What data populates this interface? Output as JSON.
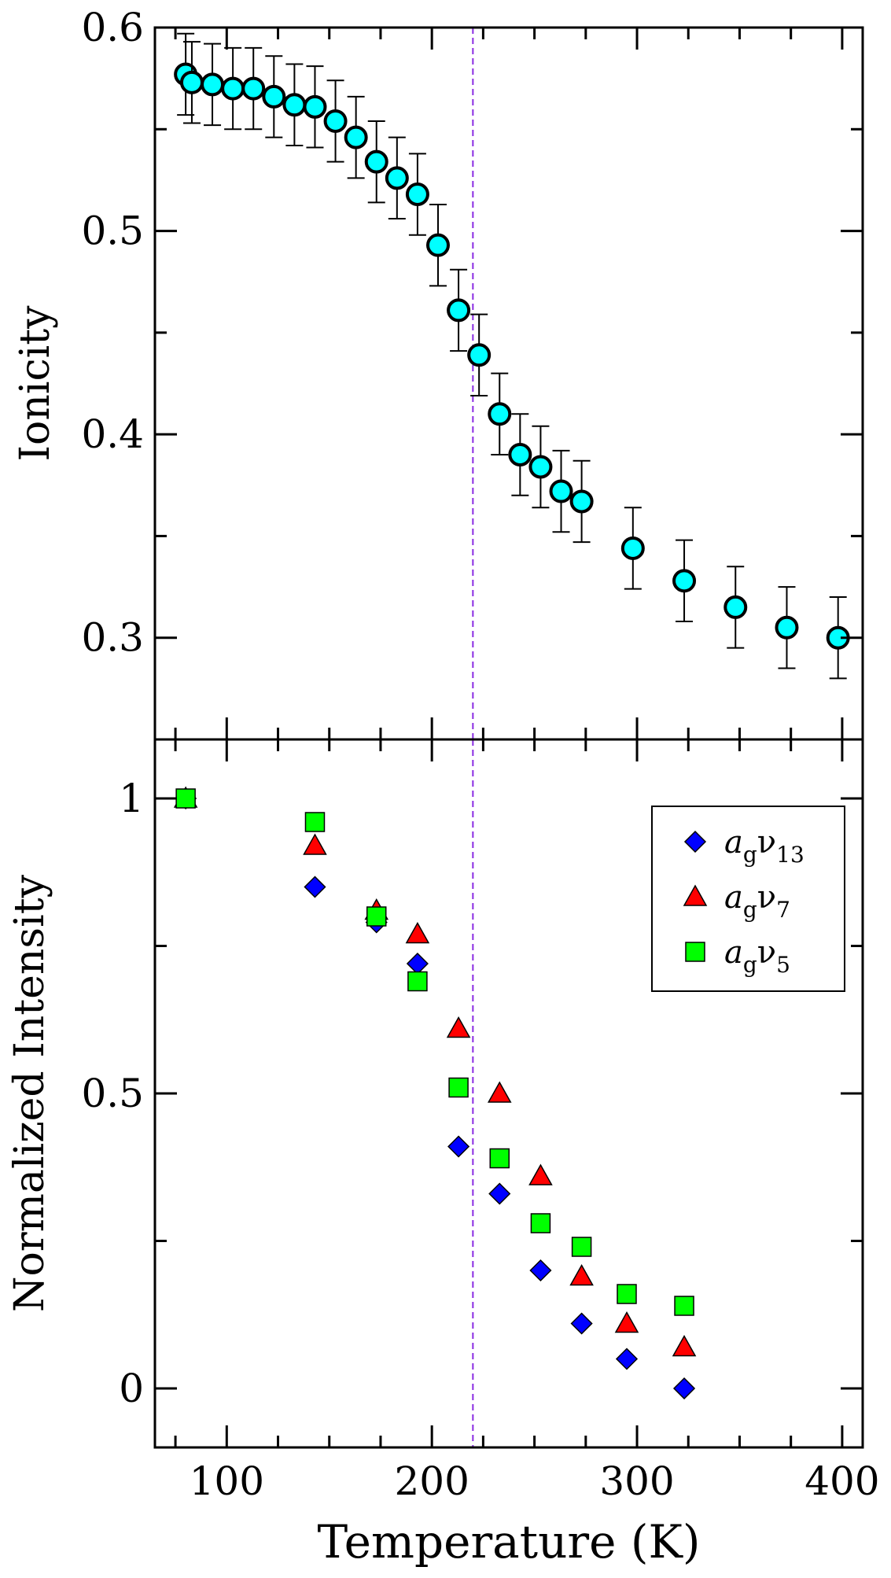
{
  "chart_data": [
    {
      "type": "scatter",
      "title": "",
      "xlabel": "",
      "ylabel": "Ionicity",
      "xlim": [
        65,
        410
      ],
      "ylim": [
        0.25,
        0.6
      ],
      "yticks": [
        {
          "value": 0.3,
          "label": "0.3"
        },
        {
          "value": 0.4,
          "label": "0.4"
        },
        {
          "value": 0.5,
          "label": "0.5"
        },
        {
          "value": 0.6,
          "label": "0.6"
        }
      ],
      "yminor": [
        0.35,
        0.45,
        0.55
      ],
      "vline_x": 220,
      "marker_color": "#00ffff",
      "errorbar": 0.02,
      "series": [
        {
          "name": "Ionicity",
          "x": [
            80,
            83,
            93,
            103,
            113,
            123,
            133,
            143,
            153,
            163,
            173,
            183,
            193,
            203,
            213,
            223,
            233,
            243,
            253,
            263,
            273,
            298,
            323,
            348,
            373,
            398
          ],
          "y": [
            0.577,
            0.573,
            0.572,
            0.57,
            0.57,
            0.566,
            0.562,
            0.561,
            0.554,
            0.546,
            0.534,
            0.526,
            0.518,
            0.493,
            0.461,
            0.439,
            0.41,
            0.39,
            0.384,
            0.372,
            0.367,
            0.344,
            0.328,
            0.315,
            0.305,
            0.3
          ]
        }
      ]
    },
    {
      "type": "scatter",
      "title": "",
      "xlabel": "Temperature (K)",
      "ylabel": "Normalized Intensity",
      "xlim": [
        65,
        410
      ],
      "ylim": [
        -0.1,
        1.1
      ],
      "yticks": [
        {
          "value": 0,
          "label": "0"
        },
        {
          "value": 0.5,
          "label": "0.5"
        },
        {
          "value": 1,
          "label": "1"
        }
      ],
      "yminor": [
        0.25,
        0.75
      ],
      "xticks": [
        {
          "value": 100,
          "label": "100"
        },
        {
          "value": 200,
          "label": "200"
        },
        {
          "value": 300,
          "label": "300"
        },
        {
          "value": 400,
          "label": "400"
        }
      ],
      "xminor": [
        75,
        125,
        150,
        175,
        225,
        250,
        275,
        325,
        350,
        375
      ],
      "vline_x": 220,
      "legend_position": "top-right",
      "series": [
        {
          "name": "a_g ν_13",
          "legend_italic": "a",
          "legend_sub1": "g",
          "legend_greek": "ν",
          "legend_sub2": "13",
          "marker": "diamond",
          "color": "#0000ff",
          "x": [
            80,
            143,
            173,
            193,
            213,
            233,
            253,
            273,
            295,
            323
          ],
          "y": [
            1.0,
            0.85,
            0.79,
            0.72,
            0.41,
            0.33,
            0.2,
            0.11,
            0.05,
            0.0
          ]
        },
        {
          "name": "a_g ν_7",
          "legend_italic": "a",
          "legend_sub1": "g",
          "legend_greek": "ν",
          "legend_sub2": "7",
          "marker": "triangle",
          "color": "#ff0000",
          "x": [
            80,
            143,
            173,
            193,
            213,
            233,
            253,
            273,
            295,
            323
          ],
          "y": [
            1.0,
            0.92,
            0.81,
            0.77,
            0.61,
            0.5,
            0.36,
            0.19,
            0.11,
            0.07
          ]
        },
        {
          "name": "a_g ν_5",
          "legend_italic": "a",
          "legend_sub1": "g",
          "legend_greek": "ν",
          "legend_sub2": "5",
          "marker": "square",
          "color": "#00ff00",
          "x": [
            80,
            143,
            173,
            193,
            213,
            233,
            253,
            273,
            295,
            323
          ],
          "y": [
            1.0,
            0.96,
            0.8,
            0.69,
            0.51,
            0.39,
            0.28,
            0.24,
            0.16,
            0.14
          ]
        }
      ]
    }
  ]
}
